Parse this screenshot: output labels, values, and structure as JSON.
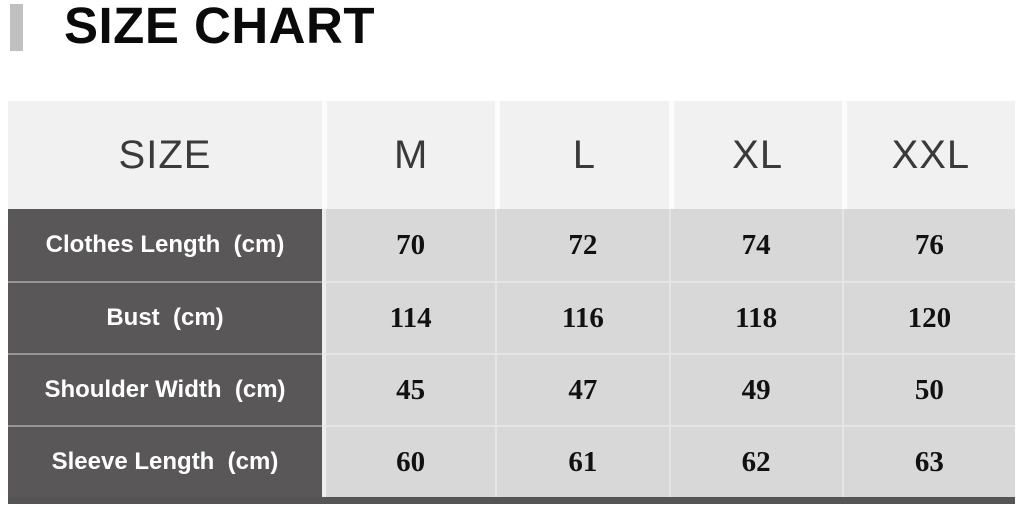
{
  "page": {
    "title": "SIZE CHART"
  },
  "colors": {
    "accent_bar": "#c1c0c0",
    "header_bg": "#f2f1f1",
    "label_bg": "#595757",
    "value_bg": "#d9d8d8",
    "bottom_border": "#565454",
    "label_text": "#ffffff",
    "value_text": "#111111"
  },
  "chart_data": {
    "type": "table",
    "title": "SIZE CHART",
    "columns": [
      "SIZE",
      "M",
      "L",
      "XL",
      "XXL"
    ],
    "rows": [
      {
        "label": "Clothes Length  (cm)",
        "values": [
          70,
          72,
          74,
          76
        ]
      },
      {
        "label": "Bust  (cm)",
        "values": [
          114,
          116,
          118,
          120
        ]
      },
      {
        "label": "Shoulder Width  (cm)",
        "values": [
          45,
          47,
          49,
          50
        ]
      },
      {
        "label": "Sleeve Length  (cm)",
        "values": [
          60,
          61,
          62,
          63
        ]
      }
    ]
  }
}
